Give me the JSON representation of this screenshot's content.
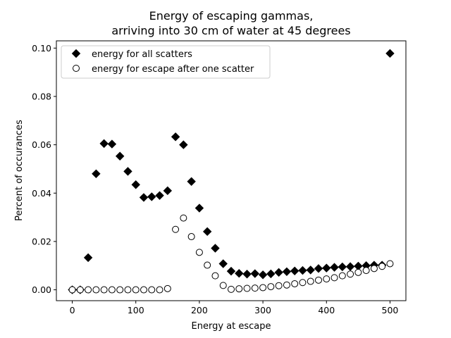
{
  "chart_data": {
    "type": "scatter",
    "title_line1": "Energy of escaping gammas,",
    "title_line2": "arriving into 30 cm of water at 45 degrees",
    "xlabel": "Energy at escape",
    "ylabel": "Percent of occurances",
    "xlim": [
      -25,
      525
    ],
    "ylim": [
      -0.0045,
      0.103
    ],
    "xticks": [
      0,
      100,
      200,
      300,
      400,
      500
    ],
    "yticks": [
      0.0,
      0.02,
      0.04,
      0.06,
      0.08,
      0.1
    ],
    "xtick_labels": [
      "0",
      "100",
      "200",
      "300",
      "400",
      "500"
    ],
    "ytick_labels": [
      "0.00",
      "0.02",
      "0.04",
      "0.06",
      "0.08",
      "0.10"
    ],
    "grid": false,
    "legend_position": "upper-left",
    "series": [
      {
        "name": "energy for all scatters",
        "marker": "filled-diamond",
        "color": "#000000",
        "x": [
          0,
          12.5,
          25,
          37.5,
          50,
          62.5,
          75,
          87.5,
          100,
          112.5,
          125,
          137.5,
          150,
          162.5,
          175,
          187.5,
          200,
          212.5,
          225,
          237.5,
          250,
          262.5,
          275,
          287.5,
          300,
          312.5,
          325,
          337.5,
          350,
          362.5,
          375,
          387.5,
          400,
          412.5,
          425,
          437.5,
          450,
          462.5,
          475,
          487.5,
          500
        ],
        "y": [
          0.0,
          0.0,
          0.0133,
          0.048,
          0.0605,
          0.0603,
          0.0553,
          0.049,
          0.0435,
          0.0382,
          0.0385,
          0.039,
          0.041,
          0.0633,
          0.06,
          0.0448,
          0.0338,
          0.0241,
          0.0172,
          0.0108,
          0.0077,
          0.0068,
          0.0065,
          0.0067,
          0.0062,
          0.0066,
          0.0072,
          0.0075,
          0.0078,
          0.008,
          0.0082,
          0.0088,
          0.009,
          0.0093,
          0.0095,
          0.0096,
          0.0098,
          0.01,
          0.0102,
          0.0102,
          0.0978
        ]
      },
      {
        "name": "energy for escape after one scatter",
        "marker": "open-circle",
        "color": "#000000",
        "x": [
          0,
          12.5,
          25,
          37.5,
          50,
          62.5,
          75,
          87.5,
          100,
          112.5,
          125,
          137.5,
          150,
          162.5,
          175,
          187.5,
          200,
          212.5,
          225,
          237.5,
          250,
          262.5,
          275,
          287.5,
          300,
          312.5,
          325,
          337.5,
          350,
          362.5,
          375,
          387.5,
          400,
          412.5,
          425,
          437.5,
          450,
          462.5,
          475,
          487.5,
          500
        ],
        "y": [
          0.0,
          0.0,
          0.0,
          0.0,
          0.0,
          0.0,
          0.0,
          0.0,
          0.0,
          0.0,
          0.0,
          0.0,
          0.0005,
          0.025,
          0.0297,
          0.022,
          0.0155,
          0.0102,
          0.0058,
          0.0018,
          0.0002,
          0.0004,
          0.0006,
          0.0007,
          0.0009,
          0.0013,
          0.0017,
          0.002,
          0.0025,
          0.003,
          0.0035,
          0.004,
          0.0045,
          0.005,
          0.0058,
          0.0065,
          0.0072,
          0.008,
          0.0088,
          0.0097,
          0.0108
        ]
      }
    ]
  }
}
